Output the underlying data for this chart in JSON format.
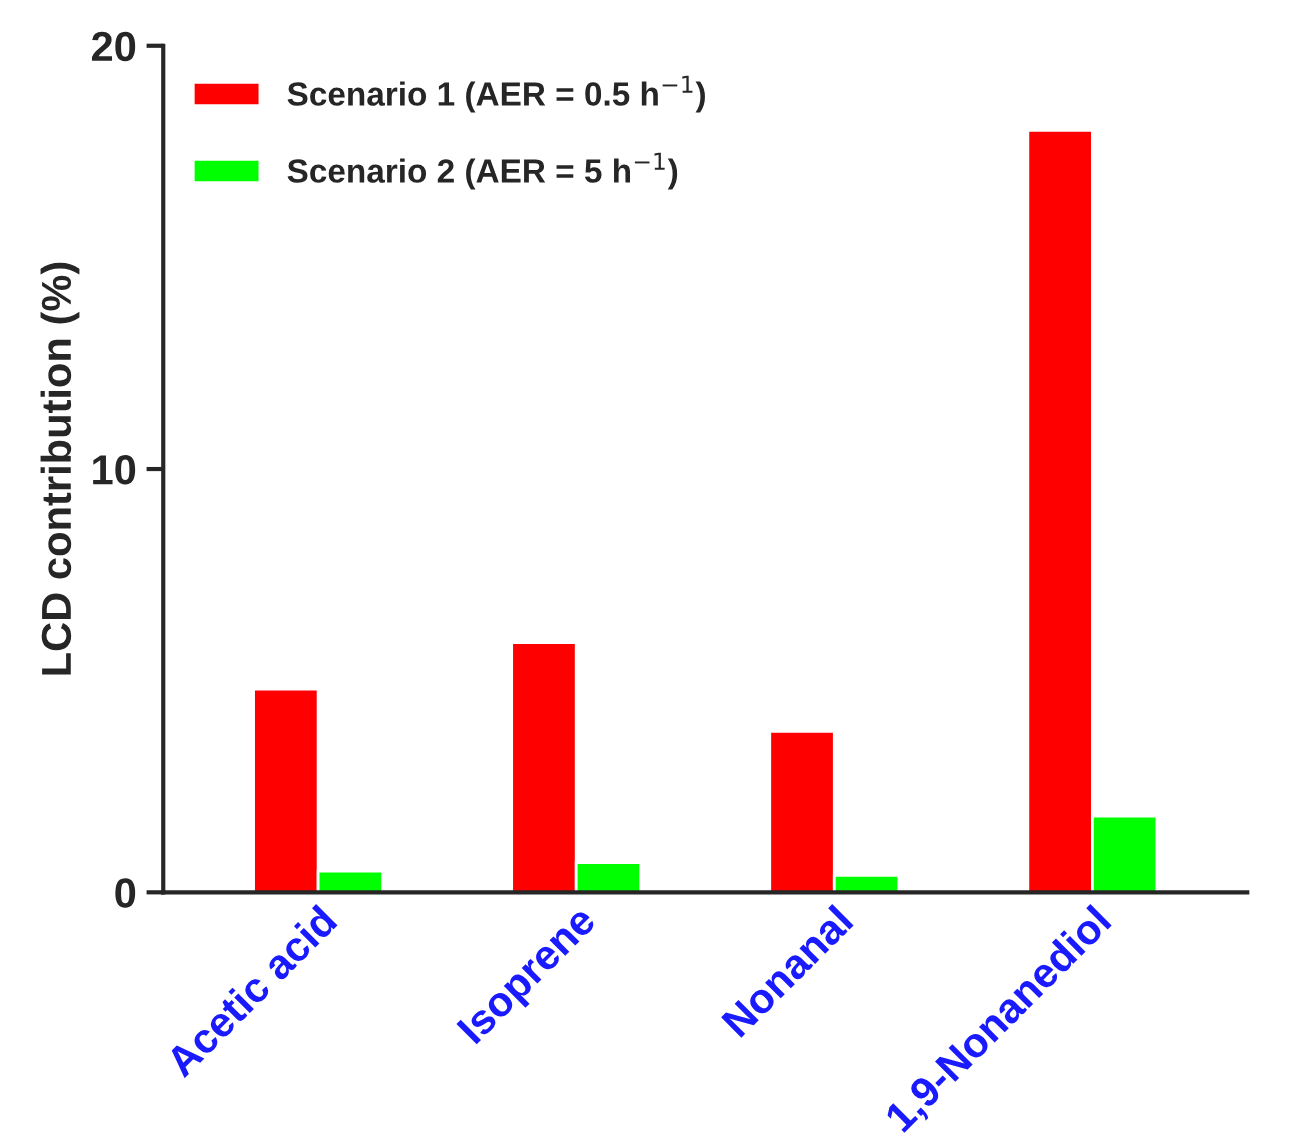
{
  "chart_data": {
    "type": "bar",
    "ylabel": "LCD contribution (%)",
    "categories": [
      "Acetic acid",
      "Isoprene",
      "Nonanal",
      "1,9-Nonanediol"
    ],
    "series": [
      {
        "name": "Scenario 1 (AER = 0.5 h$^{−1}$)",
        "color": "#ff0000",
        "values": [
          4.8,
          5.9,
          3.8,
          18.0
        ]
      },
      {
        "name": "Scenario 2 (AER = 5 h$^{−1}$)",
        "color": "#00ff00",
        "values": [
          0.5,
          0.7,
          0.4,
          1.8
        ]
      }
    ],
    "ylim": [
      0,
      20
    ],
    "yticks": [
      0,
      10,
      20
    ],
    "grid": false,
    "legend": "top left"
  }
}
